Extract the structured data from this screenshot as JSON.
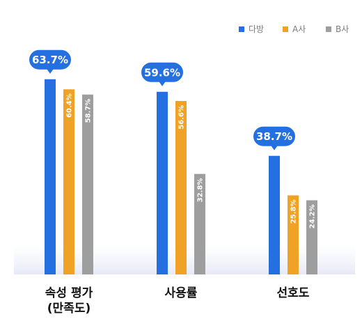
{
  "chart_data": {
    "type": "bar",
    "categories": [
      "속성 평가\n(만족도)",
      "사용률",
      "선호도"
    ],
    "series": [
      {
        "name": "다방",
        "color": "#2470e0",
        "values": [
          63.7,
          59.6,
          38.7
        ]
      },
      {
        "name": "A사",
        "color": "#f0a227",
        "values": [
          60.4,
          56.6,
          25.8
        ]
      },
      {
        "name": "B사",
        "color": "#9e9e9e",
        "values": [
          58.7,
          32.8,
          24.2
        ]
      }
    ],
    "data_labels": [
      [
        "63.7%",
        "60.4%",
        "58.7%"
      ],
      [
        "59.6%",
        "56.6%",
        "32.8%"
      ],
      [
        "38.7%",
        "25.8%",
        "24.2%"
      ]
    ],
    "ylim": [
      0,
      100
    ],
    "grid": false,
    "legend_position": "top-right"
  }
}
